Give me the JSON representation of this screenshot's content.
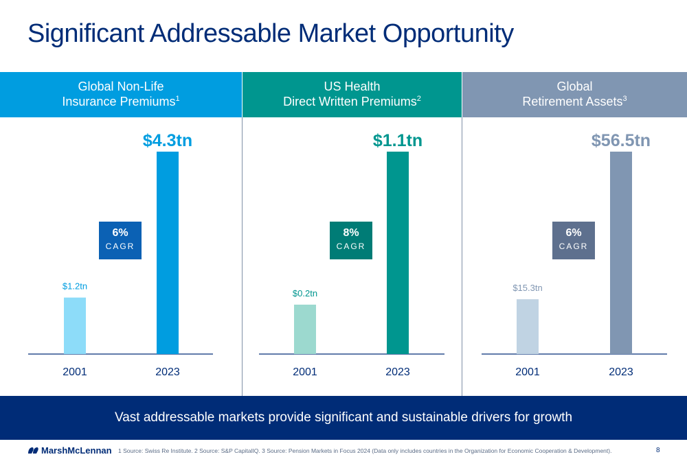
{
  "title": "Significant Addressable Market Opportunity",
  "panels": [
    {
      "header_line1": "Global Non-Life",
      "header_line2": "Insurance Premiums",
      "header_sup": "1",
      "header_color": "#009de0",
      "bar_colors": [
        "#8ddcf9",
        "#009de0"
      ],
      "label_colors": [
        "#009de0",
        "#009de0"
      ],
      "cagr_value": "6%",
      "cagr_label": "CAGR",
      "cagr_color": "#0b61b4"
    },
    {
      "header_line1": "US Health",
      "header_line2": "Direct Written Premiums",
      "header_sup": "2",
      "header_color": "#00968f",
      "bar_colors": [
        "#9cd9cf",
        "#00968f"
      ],
      "label_colors": [
        "#00968f",
        "#00968f"
      ],
      "cagr_value": "8%",
      "cagr_label": "CAGR",
      "cagr_color": "#007c76"
    },
    {
      "header_line1": "Global",
      "header_line2": "Retirement Assets",
      "header_sup": "3",
      "header_color": "#8096b2",
      "bar_colors": [
        "#c0d3e3",
        "#8096b2"
      ],
      "label_colors": [
        "#8096b2",
        "#8096b2"
      ],
      "cagr_value": "6%",
      "cagr_label": "CAGR",
      "cagr_color": "#5e708e"
    }
  ],
  "chart_data": [
    {
      "type": "bar",
      "title": "Global Non-Life Insurance Premiums",
      "categories": [
        "2001",
        "2023"
      ],
      "values": [
        1.2,
        4.3
      ],
      "data_labels": [
        "$1.2tn",
        "$4.3tn"
      ],
      "unit": "tn"
    },
    {
      "type": "bar",
      "title": "US Health Direct Written Premiums",
      "categories": [
        "2001",
        "2023"
      ],
      "values": [
        0.2,
        1.1
      ],
      "data_labels": [
        "$0.2tn",
        "$1.1tn"
      ],
      "unit": "tn"
    },
    {
      "type": "bar",
      "title": "Global Retirement Assets",
      "categories": [
        "2001",
        "2023"
      ],
      "values": [
        15.3,
        56.5
      ],
      "data_labels": [
        "$15.3tn",
        "$56.5tn"
      ],
      "unit": "tn"
    }
  ],
  "banner_text": "Vast addressable markets provide significant and sustainable drivers for growth",
  "logo_text": "MarshMcLennan",
  "source_text": "1 Source: Swiss Re Institute. 2 Source: S&P CapitalIQ. 3 Source: Pension Markets in Focus 2024 (Data only includes countries in the Organization for Economic Cooperation & Development).",
  "page_number": "8"
}
